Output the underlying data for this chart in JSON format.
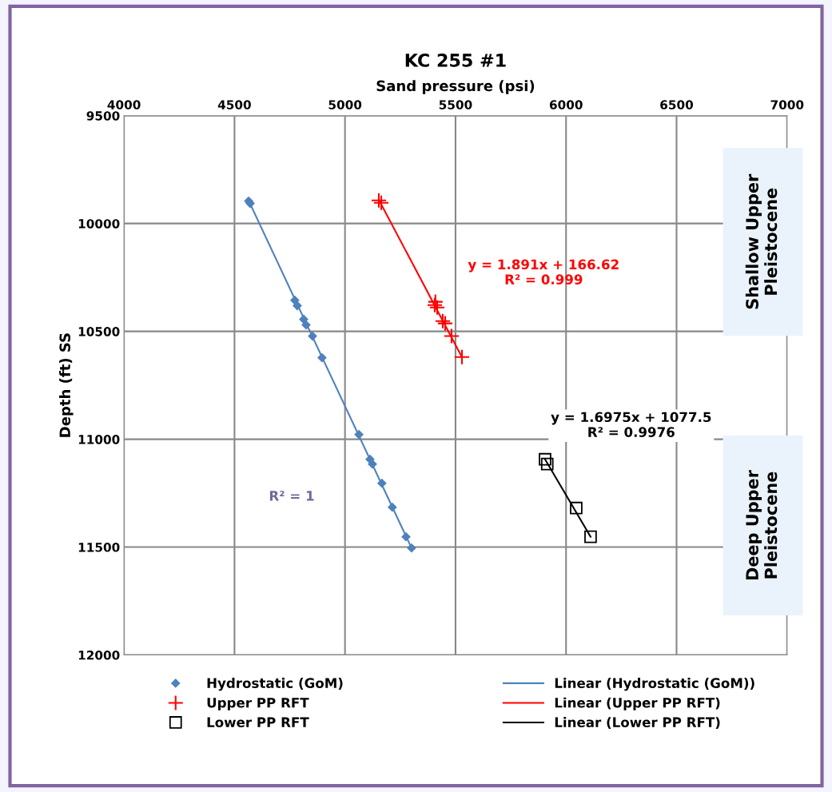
{
  "chart_data": {
    "type": "scatter",
    "title": "KC 255 #1",
    "xlabel": "Sand pressure (psi)",
    "ylabel": "Depth (ft) SS",
    "xlim": [
      4000,
      7000
    ],
    "xticks": [
      4000,
      4500,
      5000,
      5500,
      6000,
      6500,
      7000
    ],
    "ylim": [
      12000,
      9500
    ],
    "yticks": [
      9500,
      10000,
      10500,
      11000,
      11500,
      12000
    ],
    "grid": true,
    "legend": "bottom",
    "series": [
      {
        "name": "Hydrostatic (GoM)",
        "marker": "diamond",
        "color": "#4f81bd",
        "x": [
          4564,
          4571,
          4773,
          4784,
          4813,
          4824,
          4853,
          4896,
          5063,
          5113,
          5124,
          5167,
          5214,
          5276,
          5301
        ],
        "values": [
          9896,
          9907,
          10356,
          10381,
          10444,
          10470,
          10522,
          10622,
          10978,
          11093,
          11115,
          11204,
          11315,
          11452,
          11504
        ]
      },
      {
        "name": "Upper PP RFT",
        "marker": "cross",
        "color": "#ff0000",
        "x": [
          5153,
          5164,
          5409,
          5406,
          5417,
          5442,
          5453,
          5482,
          5529
        ],
        "values": [
          9893,
          9904,
          10363,
          10378,
          10389,
          10452,
          10463,
          10522,
          10619
        ]
      },
      {
        "name": "Lower PP RFT",
        "marker": "square",
        "color": "#000000",
        "x": [
          5905,
          5915,
          6046,
          6111
        ],
        "values": [
          11093,
          11115,
          11319,
          11452
        ]
      },
      {
        "name": "Linear (Hydrostatic (GoM))",
        "type": "line",
        "marker": "none",
        "color": "#4f81bd",
        "x": [
          4560,
          5301
        ],
        "values": [
          9885,
          11504
        ]
      },
      {
        "name": "Linear (Upper PP RFT)",
        "type": "line",
        "marker": "none",
        "color": "#ff0000",
        "x": [
          5153,
          5529
        ],
        "values": [
          9890,
          10619
        ]
      },
      {
        "name": "Linear (Lower PP RFT)",
        "type": "line",
        "marker": "none",
        "color": "#000000",
        "x": [
          5905,
          6111
        ],
        "values": [
          11093,
          11452
        ]
      }
    ],
    "annotations": [
      "y = 1.891x + 166.62\nR² = 0.999",
      "y = 1.6975x + 1077.5\nR² = 0.9976",
      "R² = 1",
      "Shallow Upper\nPleistocene",
      "Deep Upper\nPleistocene"
    ]
  }
}
